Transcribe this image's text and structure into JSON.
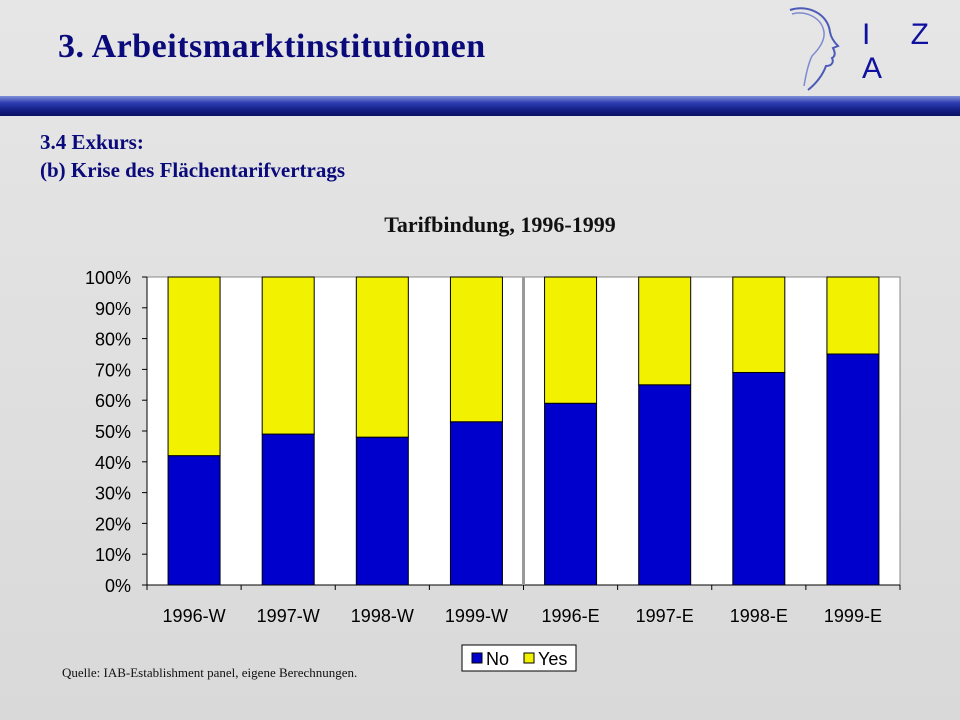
{
  "slide": {
    "title": "3. Arbeitsmarktinstitutionen",
    "subtitle_line1": "3.4 Exkurs:",
    "subtitle_line2": "(b) Krise des Flächentarifvertrags",
    "logo_text": "I Z A",
    "source": "Quelle: IAB-Establishment panel, eigene Berechnungen."
  },
  "colors": {
    "no": "#0000cc",
    "yes": "#f2f200",
    "title": "#0a0a7a"
  },
  "chart_data": {
    "type": "bar",
    "stacked": true,
    "title": "Tarifbindung, 1996-1999",
    "categories": [
      "1996-W",
      "1997-W",
      "1998-W",
      "1999-W",
      "1996-E",
      "1997-E",
      "1998-E",
      "1999-E"
    ],
    "series": [
      {
        "name": "No",
        "values": [
          42,
          49,
          48,
          53,
          59,
          65,
          69,
          75
        ]
      },
      {
        "name": "Yes",
        "values": [
          58,
          51,
          52,
          47,
          41,
          35,
          31,
          25
        ]
      }
    ],
    "ylim": [
      0,
      100
    ],
    "yticks": [
      "0%",
      "10%",
      "20%",
      "30%",
      "40%",
      "50%",
      "60%",
      "70%",
      "80%",
      "90%",
      "100%"
    ],
    "xlabel": "",
    "ylabel": "",
    "legend_position": "bottom-right",
    "divider_after_category": "1999-W"
  }
}
